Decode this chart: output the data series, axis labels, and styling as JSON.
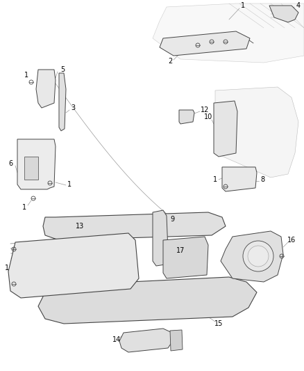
{
  "bg_color": "#ffffff",
  "lc": "#444444",
  "lc_light": "#999999",
  "fill_light": "#f0f0f0",
  "fill_med": "#e0e0e0",
  "label_fs": 7,
  "figsize": [
    4.38,
    5.33
  ],
  "dpi": 100
}
